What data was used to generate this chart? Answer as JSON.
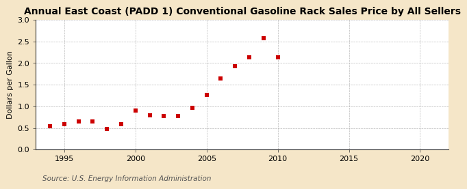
{
  "title": "Annual East Coast (PADD 1) Conventional Gasoline Rack Sales Price by All Sellers",
  "ylabel": "Dollars per Gallon",
  "source": "Source: U.S. Energy Information Administration",
  "figure_bg": "#f5e6c8",
  "plot_bg": "#ffffff",
  "marker_color": "#cc0000",
  "grid_color": "#aaaaaa",
  "spine_color": "#333333",
  "xlim": [
    1993,
    2022
  ],
  "ylim": [
    0.0,
    3.0
  ],
  "xticks": [
    1995,
    2000,
    2005,
    2010,
    2015,
    2020
  ],
  "yticks": [
    0.0,
    0.5,
    1.0,
    1.5,
    2.0,
    2.5,
    3.0
  ],
  "years": [
    1994,
    1995,
    1996,
    1997,
    1998,
    1999,
    2000,
    2001,
    2002,
    2003,
    2004,
    2005,
    2006,
    2007,
    2008,
    2009,
    2010
  ],
  "values": [
    0.54,
    0.58,
    0.65,
    0.65,
    0.48,
    0.58,
    0.91,
    0.79,
    0.77,
    0.77,
    0.96,
    1.27,
    1.64,
    1.93,
    2.13,
    2.57,
    2.13
  ],
  "title_fontsize": 10,
  "label_fontsize": 8,
  "tick_fontsize": 8,
  "source_fontsize": 7.5,
  "marker_size": 4
}
